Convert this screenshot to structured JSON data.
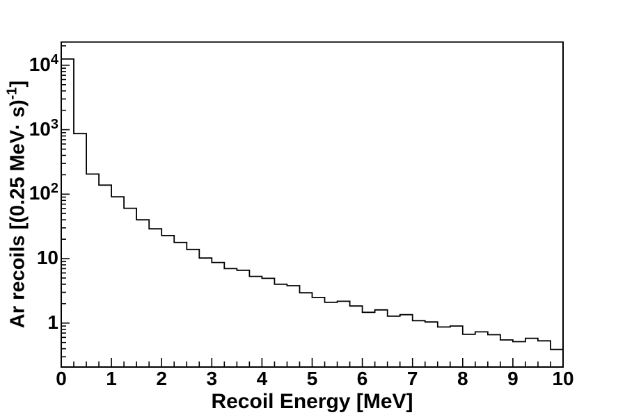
{
  "colors": {
    "background": "#ffffff",
    "line": "#000000",
    "text": "#000000"
  },
  "chart_data": {
    "type": "histogram-step",
    "title": "",
    "xlabel": "Recoil Energy [MeV]",
    "ylabel": "Ar recoils [(0.25 MeV· s)^-1]",
    "ylabel_prefix": "Ar recoils [(0.25 MeV· s)",
    "ylabel_sup": "-1",
    "ylabel_suffix": "]",
    "y_scale": "log",
    "xlim": [
      0,
      10
    ],
    "ylim": [
      0.208,
      22900
    ],
    "grid": false,
    "legend": "none",
    "bin_start_mev": 0,
    "bin_width_mev": 0.25,
    "x_ticks": [
      {
        "label": "0",
        "value": 0
      },
      {
        "label": "1",
        "value": 1
      },
      {
        "label": "2",
        "value": 2
      },
      {
        "label": "3",
        "value": 3
      },
      {
        "label": "4",
        "value": 4
      },
      {
        "label": "5",
        "value": 5
      },
      {
        "label": "6",
        "value": 6
      },
      {
        "label": "7",
        "value": 7
      },
      {
        "label": "8",
        "value": 8
      },
      {
        "label": "9",
        "value": 9
      },
      {
        "label": "10",
        "value": 10
      }
    ],
    "x_minor_step": 0.25,
    "y_ticks": [
      {
        "base": "10",
        "exp": "4",
        "value": 10000
      },
      {
        "base": "10",
        "exp": "3",
        "value": 1000
      },
      {
        "base": "10",
        "exp": "2",
        "value": 100
      },
      {
        "base": "10",
        "exp": "",
        "value": 10
      },
      {
        "base": "1",
        "exp": "",
        "value": 1
      }
    ],
    "counts": [
      12500,
      870,
      205,
      138,
      91,
      60.5,
      40,
      29,
      22.8,
      17.8,
      13.9,
      10.2,
      8.7,
      7.0,
      6.6,
      5.3,
      4.95,
      4.0,
      3.8,
      2.95,
      2.5,
      2.1,
      2.18,
      1.84,
      1.47,
      1.6,
      1.28,
      1.35,
      1.09,
      1.04,
      0.87,
      0.9,
      0.67,
      0.73,
      0.66,
      0.548,
      0.515,
      0.58,
      0.53,
      0.39
    ]
  }
}
